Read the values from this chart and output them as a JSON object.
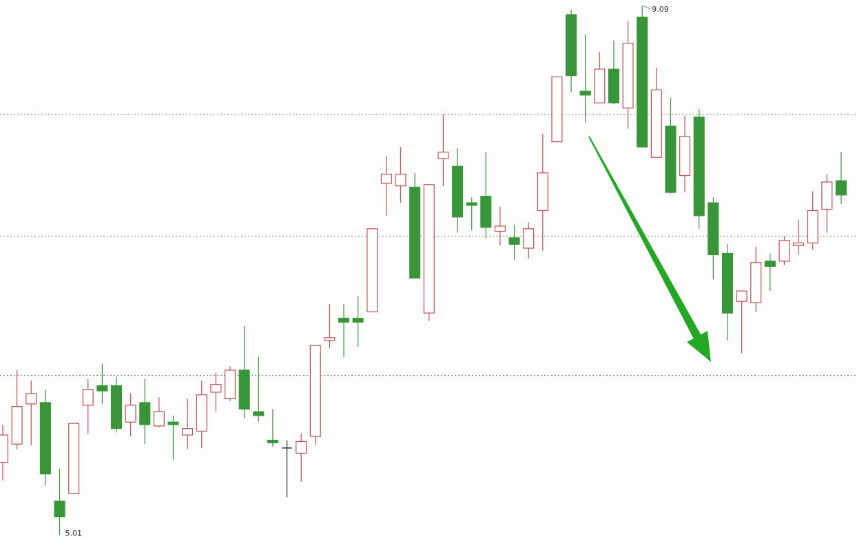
{
  "chart_data": {
    "type": "candlestick",
    "categories": [
      null,
      null,
      null,
      null,
      null,
      null,
      null,
      null,
      null,
      null,
      null,
      null,
      null,
      null,
      null,
      null,
      null,
      null,
      null,
      null,
      null,
      null,
      null,
      null,
      null,
      null,
      null,
      null,
      null,
      null,
      null,
      null,
      null,
      null,
      null,
      null,
      null,
      null,
      null,
      null,
      null,
      null,
      null,
      null,
      null,
      null,
      null,
      null,
      null,
      null,
      null,
      null,
      null,
      null,
      null,
      null,
      null,
      null,
      null,
      null
    ],
    "ohlc": [
      [
        5.57,
        5.86,
        5.43,
        5.78
      ],
      [
        5.71,
        6.28,
        5.67,
        6.0
      ],
      [
        6.02,
        6.2,
        5.7,
        6.1
      ],
      [
        6.03,
        6.13,
        5.39,
        5.48
      ],
      [
        5.27,
        5.52,
        5.01,
        5.15
      ],
      [
        5.33,
        5.87,
        5.33,
        5.87
      ],
      [
        6.01,
        6.21,
        5.79,
        6.13
      ],
      [
        6.16,
        6.33,
        6.02,
        6.12
      ],
      [
        6.16,
        6.23,
        5.8,
        5.83
      ],
      [
        5.88,
        6.1,
        5.77,
        6.01
      ],
      [
        6.03,
        6.21,
        5.71,
        5.86
      ],
      [
        5.85,
        6.07,
        5.84,
        5.96
      ],
      [
        5.88,
        5.93,
        5.59,
        5.86
      ],
      [
        5.78,
        6.06,
        5.67,
        5.83
      ],
      [
        5.81,
        6.2,
        5.68,
        6.09
      ],
      [
        6.11,
        6.26,
        5.96,
        6.17
      ],
      [
        6.06,
        6.31,
        6.04,
        6.28
      ],
      [
        6.28,
        6.62,
        5.91,
        5.98
      ],
      [
        5.96,
        6.38,
        5.88,
        5.93
      ],
      [
        5.74,
        5.98,
        5.69,
        5.72
      ],
      [
        5.68,
        5.74,
        5.3,
        5.68
      ],
      [
        5.64,
        5.79,
        5.42,
        5.73
      ],
      [
        5.77,
        6.47,
        5.7,
        6.47
      ],
      [
        6.51,
        6.79,
        6.45,
        6.53
      ],
      [
        6.68,
        6.79,
        6.38,
        6.65
      ],
      [
        6.68,
        6.85,
        6.46,
        6.65
      ],
      [
        6.73,
        7.37,
        6.73,
        7.37
      ],
      [
        7.72,
        7.93,
        7.47,
        7.79
      ],
      [
        7.7,
        8.0,
        7.57,
        7.79
      ],
      [
        7.69,
        7.8,
        6.99,
        6.99
      ],
      [
        6.72,
        7.71,
        6.66,
        7.71
      ],
      [
        7.91,
        8.25,
        7.7,
        7.96
      ],
      [
        7.85,
        7.99,
        7.34,
        7.46
      ],
      [
        7.57,
        7.61,
        7.36,
        7.55
      ],
      [
        7.62,
        7.96,
        7.3,
        7.38
      ],
      [
        7.35,
        7.54,
        7.24,
        7.39
      ],
      [
        7.3,
        7.4,
        7.13,
        7.25
      ],
      [
        7.22,
        7.42,
        7.14,
        7.37
      ],
      [
        7.51,
        8.1,
        7.2,
        7.8
      ],
      [
        8.04,
        8.54,
        8.04,
        8.54
      ],
      [
        9.02,
        9.06,
        8.42,
        8.55
      ],
      [
        8.43,
        8.87,
        8.19,
        8.4
      ],
      [
        8.34,
        8.73,
        8.34,
        8.6
      ],
      [
        8.6,
        8.82,
        8.33,
        8.34
      ],
      [
        8.3,
        8.97,
        8.14,
        8.8
      ],
      [
        9.0,
        9.09,
        8.0,
        8.0
      ],
      [
        7.92,
        8.61,
        7.92,
        8.44
      ],
      [
        8.16,
        8.38,
        7.64,
        7.65
      ],
      [
        7.78,
        8.24,
        7.65,
        8.08
      ],
      [
        8.23,
        8.29,
        7.37,
        7.47
      ],
      [
        7.57,
        7.61,
        6.98,
        7.17
      ],
      [
        7.18,
        7.25,
        6.51,
        6.72
      ],
      [
        6.81,
        6.89,
        6.41,
        6.89
      ],
      [
        6.8,
        7.23,
        6.73,
        7.11
      ],
      [
        7.12,
        7.18,
        6.89,
        7.08
      ],
      [
        7.12,
        7.31,
        7.09,
        7.28
      ],
      [
        7.24,
        7.44,
        7.17,
        7.26
      ],
      [
        7.26,
        7.66,
        7.21,
        7.51
      ],
      [
        7.52,
        7.79,
        7.34,
        7.73
      ],
      [
        7.74,
        7.96,
        7.56,
        7.63
      ]
    ],
    "colors": [
      "#c0504d",
      "#c0504d",
      "#c0504d",
      "#389638",
      "#389638",
      "#c0504d",
      "#c0504d",
      "#389638",
      "#389638",
      "#c0504d",
      "#389638",
      "#c0504d",
      "#389638",
      "#c0504d",
      "#c0504d",
      "#c0504d",
      "#c0504d",
      "#389638",
      "#389638",
      "#389638",
      "#222222",
      "#c0504d",
      "#c0504d",
      "#c0504d",
      "#389638",
      "#389638",
      "#c0504d",
      "#c0504d",
      "#c0504d",
      "#389638",
      "#c0504d",
      "#c0504d",
      "#389638",
      "#389638",
      "#389638",
      "#c0504d",
      "#389638",
      "#c0504d",
      "#c0504d",
      "#c0504d",
      "#389638",
      "#389638",
      "#c0504d",
      "#389638",
      "#c0504d",
      "#389638",
      "#c0504d",
      "#389638",
      "#c0504d",
      "#389638",
      "#389638",
      "#389638",
      "#c0504d",
      "#c0504d",
      "#389638",
      "#c0504d",
      "#c0504d",
      "#c0504d",
      "#c0504d",
      "#389638"
    ],
    "yticks": [
      {
        "value": 8.25,
        "label": null
      },
      {
        "value": 7.31,
        "label": null
      },
      {
        "value": 6.24,
        "label": null
      }
    ],
    "grid": "y",
    "annotations": [
      "9.09",
      "5.01"
    ]
  }
}
